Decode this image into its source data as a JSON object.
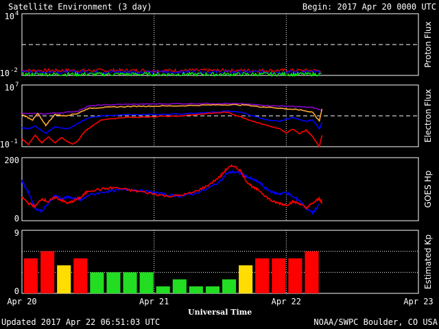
{
  "header": {
    "title": "Satellite Environment (3 day)",
    "begin": "Begin:  2017 Apr 20 0000 UTC"
  },
  "footer": {
    "updated": "Updated 2017 Apr 22 06:51:03 UTC",
    "source": "NOAA/SWPC Boulder, CO USA"
  },
  "colors": {
    "background": "#000000",
    "frame": "#ffffff",
    "red": "#ff0000",
    "blue": "#0000ff",
    "green": "#00ff00",
    "orange": "#ffaa33",
    "purple": "#8800cc",
    "kp_green": "#22dd22",
    "kp_yellow": "#ffdd00",
    "kp_red": "#ff0000"
  },
  "chart_data": [
    {
      "type": "line",
      "name": "proton_flux",
      "ylabel": "Proton Flux",
      "yscale": "log",
      "ylim": [
        0.01,
        10000
      ],
      "yticks": [
        {
          "value": 10000,
          "label": "10⁴"
        },
        {
          "value": 0.01,
          "label": "10⁻²"
        }
      ],
      "threshold": 10,
      "x_range_days": [
        0,
        3
      ],
      "data_end_day": 2.27,
      "series": [
        {
          "color_key": "red",
          "level": 0.03
        },
        {
          "color_key": "blue",
          "level": 0.021
        },
        {
          "color_key": "green",
          "level": 0.013
        }
      ]
    },
    {
      "type": "line",
      "name": "electron_flux",
      "ylabel": "Electron Flux",
      "yscale": "log",
      "ylim": [
        0.1,
        10000000
      ],
      "yticks": [
        {
          "value": 10000000,
          "label": "10⁷"
        },
        {
          "value": 0.1,
          "label": "10⁻¹"
        }
      ],
      "threshold": 1000,
      "x_range_days": [
        0,
        3
      ],
      "series": [
        {
          "color_key": "purple",
          "x": [
            0.0,
            0.15,
            0.3,
            0.42,
            0.5,
            0.6,
            0.75,
            0.9,
            1.0,
            1.2,
            1.4,
            1.55,
            1.7,
            1.8,
            1.9,
            2.0,
            2.1,
            2.2,
            2.27
          ],
          "y": [
            2000,
            1800,
            2500,
            4000,
            18000,
            25000,
            30000,
            33000,
            35000,
            37000,
            40000,
            40000,
            33000,
            25000,
            20000,
            18000,
            15000,
            12000,
            5000
          ]
        },
        {
          "color_key": "orange",
          "x": [
            0.0,
            0.08,
            0.12,
            0.18,
            0.25,
            0.32,
            0.42,
            0.5,
            0.6,
            0.75,
            0.9,
            1.0,
            1.2,
            1.4,
            1.55,
            1.7,
            1.8,
            1.9,
            2.0,
            2.1,
            2.2,
            2.25,
            2.27
          ],
          "y": [
            1500,
            300,
            2000,
            60,
            1500,
            1000,
            2000,
            9000,
            12000,
            15000,
            18000,
            18000,
            20000,
            25000,
            28000,
            25000,
            15000,
            12000,
            8000,
            6000,
            3000,
            200,
            8000
          ]
        },
        {
          "color_key": "blue",
          "x": [
            0.0,
            0.05,
            0.1,
            0.18,
            0.25,
            0.35,
            0.42,
            0.5,
            0.6,
            0.8,
            1.0,
            1.2,
            1.4,
            1.55,
            1.65,
            1.75,
            1.85,
            1.95,
            2.05,
            2.15,
            2.2,
            2.25,
            2.27
          ],
          "y": [
            30,
            20,
            50,
            5,
            40,
            20,
            100,
            500,
            1000,
            1500,
            1500,
            1800,
            2500,
            4000,
            3000,
            1000,
            300,
            200,
            600,
            200,
            300,
            20,
            150
          ]
        },
        {
          "color_key": "red",
          "x": [
            0.0,
            0.05,
            0.1,
            0.15,
            0.2,
            0.25,
            0.3,
            0.38,
            0.42,
            0.47,
            0.5,
            0.6,
            0.8,
            1.0,
            1.2,
            1.4,
            1.55,
            1.65,
            1.75,
            1.85,
            1.95,
            2.0,
            2.05,
            2.1,
            2.15,
            2.2,
            2.25,
            2.27
          ],
          "y": [
            1,
            0.2,
            3,
            0.3,
            2,
            0.3,
            1.5,
            0.2,
            0.5,
            8,
            20,
            300,
            600,
            800,
            1000,
            2000,
            3000,
            800,
            200,
            60,
            20,
            6,
            20,
            5,
            15,
            2,
            0.1,
            3
          ]
        }
      ]
    },
    {
      "type": "line",
      "name": "goes_hp",
      "ylabel": "GOES Hp",
      "ylim": [
        0,
        200
      ],
      "yticks": [
        {
          "value": 200,
          "label": "200"
        },
        {
          "value": 0,
          "label": "0"
        }
      ],
      "x_range_days": [
        0,
        3
      ],
      "series": [
        {
          "color_key": "blue",
          "x": [
            0.0,
            0.05,
            0.1,
            0.15,
            0.2,
            0.25,
            0.3,
            0.35,
            0.4,
            0.45,
            0.5,
            0.6,
            0.7,
            0.8,
            0.9,
            1.0,
            1.1,
            1.2,
            1.3,
            1.4,
            1.5,
            1.55,
            1.6,
            1.65,
            1.7,
            1.75,
            1.8,
            1.85,
            1.9,
            1.95,
            2.0,
            2.05,
            2.1,
            2.15,
            2.2,
            2.25
          ],
          "y": [
            125,
            90,
            40,
            30,
            55,
            80,
            70,
            75,
            70,
            65,
            80,
            90,
            95,
            100,
            95,
            90,
            82,
            78,
            85,
            100,
            125,
            150,
            155,
            150,
            140,
            130,
            120,
            100,
            90,
            85,
            90,
            75,
            65,
            40,
            25,
            50
          ]
        },
        {
          "color_key": "red",
          "x": [
            0.0,
            0.05,
            0.1,
            0.15,
            0.2,
            0.25,
            0.3,
            0.35,
            0.4,
            0.45,
            0.5,
            0.6,
            0.7,
            0.8,
            0.9,
            1.0,
            1.1,
            1.2,
            1.3,
            1.4,
            1.5,
            1.55,
            1.6,
            1.65,
            1.7,
            1.75,
            1.8,
            1.85,
            1.9,
            1.95,
            2.0,
            2.05,
            2.1,
            2.15,
            2.2,
            2.25,
            2.27
          ],
          "y": [
            75,
            55,
            45,
            70,
            60,
            75,
            65,
            55,
            65,
            75,
            95,
            100,
            105,
            98,
            92,
            85,
            78,
            80,
            90,
            110,
            140,
            165,
            175,
            160,
            125,
            105,
            95,
            75,
            60,
            55,
            50,
            60,
            55,
            40,
            55,
            70,
            55
          ]
        }
      ]
    },
    {
      "type": "bar",
      "name": "estimated_kp",
      "ylabel": "Estimated Kp",
      "ylim": [
        0,
        9
      ],
      "yticks": [
        {
          "value": 9,
          "label": "9"
        },
        {
          "value": 0,
          "label": "0"
        }
      ],
      "hgrid": [
        3,
        6,
        9
      ],
      "x_range_days": [
        0,
        3
      ],
      "bar_interval_hours": 3,
      "values": [
        5,
        6,
        4,
        5,
        3,
        3,
        3,
        3,
        1,
        2,
        1,
        1,
        2,
        4,
        5,
        5,
        5,
        6
      ],
      "color_keys": [
        "kp_red",
        "kp_red",
        "kp_yellow",
        "kp_red",
        "kp_green",
        "kp_green",
        "kp_green",
        "kp_green",
        "kp_green",
        "kp_green",
        "kp_green",
        "kp_green",
        "kp_green",
        "kp_yellow",
        "kp_red",
        "kp_red",
        "kp_red",
        "kp_red"
      ]
    }
  ],
  "x_axis": {
    "label": "Universal Time",
    "ticks": [
      "Apr 20",
      "Apr 21",
      "Apr 22",
      "Apr 23"
    ],
    "day_markers": [
      1,
      2
    ]
  }
}
